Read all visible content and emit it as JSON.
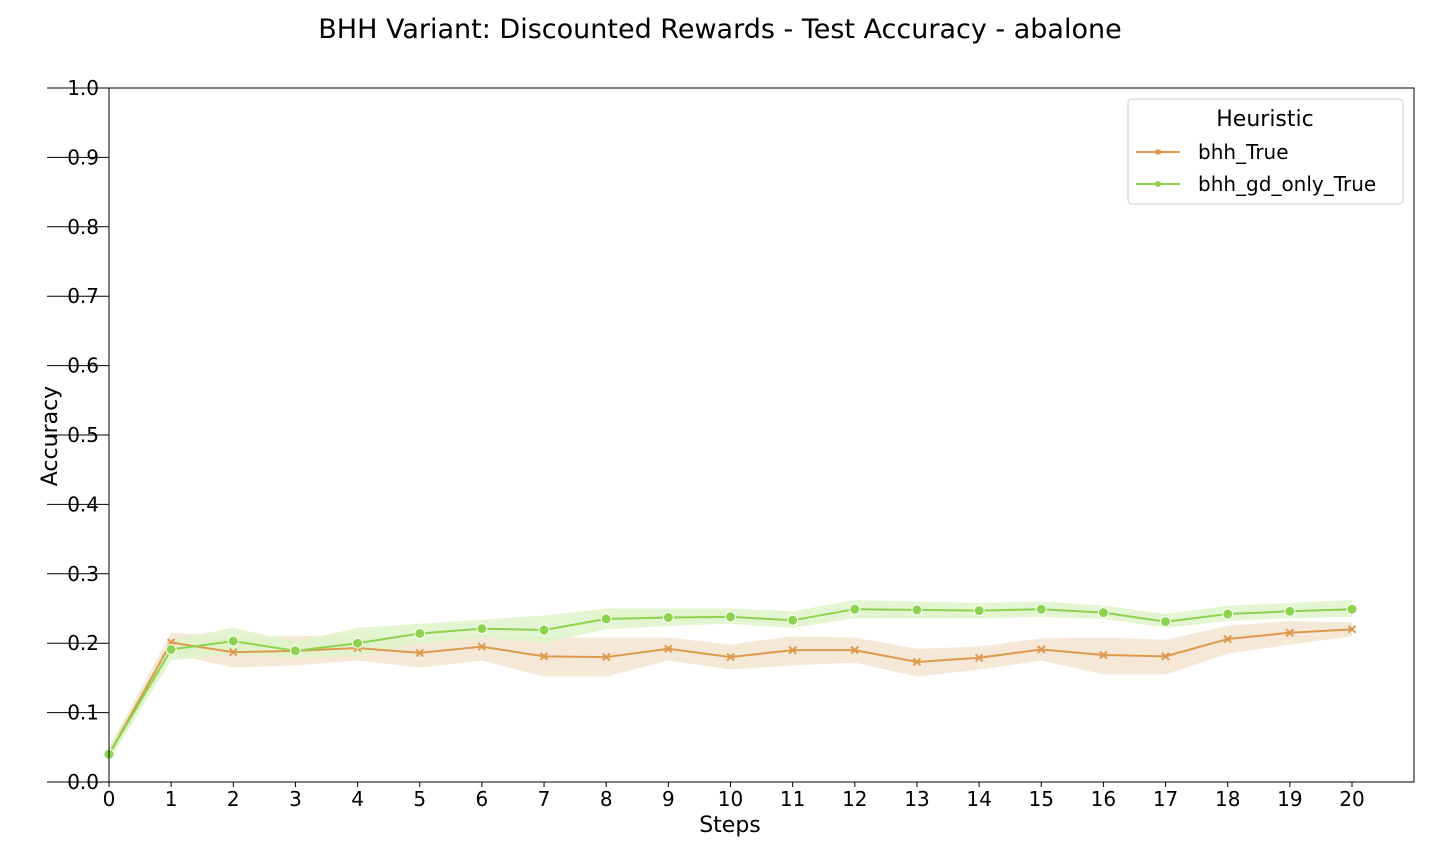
{
  "chart_data": {
    "type": "line",
    "title": "BHH Variant: Discounted Rewards - Test Accuracy - abalone",
    "xlabel": "Steps",
    "ylabel": "Accuracy",
    "xlim": [
      0,
      21
    ],
    "ylim": [
      0.0,
      1.0
    ],
    "x": [
      0,
      1,
      2,
      3,
      4,
      5,
      6,
      7,
      8,
      9,
      10,
      11,
      12,
      13,
      14,
      15,
      16,
      17,
      18,
      19,
      20
    ],
    "x_ticks": [
      "0",
      "1",
      "2",
      "3",
      "4",
      "5",
      "6",
      "7",
      "8",
      "9",
      "10",
      "11",
      "12",
      "13",
      "14",
      "15",
      "16",
      "17",
      "18",
      "19",
      "20"
    ],
    "y_ticks": [
      "0.0",
      "0.1",
      "0.2",
      "0.3",
      "0.4",
      "0.5",
      "0.6",
      "0.7",
      "0.8",
      "0.9",
      "1.0"
    ],
    "grid": false,
    "legend": {
      "title": "Heuristic",
      "placement": "top-right"
    },
    "series": [
      {
        "name": "bhh_True",
        "color": "#dd9a4e",
        "band_color": "#f5e4cf",
        "marker": "x",
        "values": [
          0.04,
          0.201,
          0.187,
          0.189,
          0.193,
          0.186,
          0.195,
          0.181,
          0.18,
          0.192,
          0.18,
          0.19,
          0.19,
          0.173,
          0.179,
          0.191,
          0.183,
          0.181,
          0.206,
          0.215,
          0.22
        ],
        "lower": [
          0.03,
          0.185,
          0.165,
          0.168,
          0.175,
          0.165,
          0.175,
          0.152,
          0.152,
          0.175,
          0.162,
          0.168,
          0.172,
          0.152,
          0.162,
          0.175,
          0.155,
          0.155,
          0.185,
          0.198,
          0.21
        ],
        "upper": [
          0.05,
          0.215,
          0.21,
          0.21,
          0.212,
          0.205,
          0.215,
          0.208,
          0.208,
          0.208,
          0.198,
          0.21,
          0.208,
          0.192,
          0.195,
          0.207,
          0.208,
          0.205,
          0.225,
          0.232,
          0.23
        ]
      },
      {
        "name": "bhh_gd_only_True",
        "color": "#8cd450",
        "band_color": "#def4c9",
        "marker": "o",
        "values": [
          0.04,
          0.191,
          0.203,
          0.189,
          0.2,
          0.214,
          0.221,
          0.219,
          0.235,
          0.237,
          0.238,
          0.233,
          0.249,
          0.248,
          0.247,
          0.249,
          0.244,
          0.231,
          0.242,
          0.246,
          0.249
        ],
        "lower": [
          0.03,
          0.175,
          0.185,
          0.178,
          0.182,
          0.2,
          0.208,
          0.2,
          0.22,
          0.225,
          0.228,
          0.222,
          0.236,
          0.236,
          0.236,
          0.238,
          0.235,
          0.222,
          0.232,
          0.236,
          0.238
        ],
        "upper": [
          0.05,
          0.205,
          0.222,
          0.202,
          0.222,
          0.228,
          0.234,
          0.24,
          0.25,
          0.25,
          0.25,
          0.246,
          0.262,
          0.26,
          0.258,
          0.26,
          0.254,
          0.242,
          0.254,
          0.258,
          0.262
        ]
      }
    ]
  }
}
